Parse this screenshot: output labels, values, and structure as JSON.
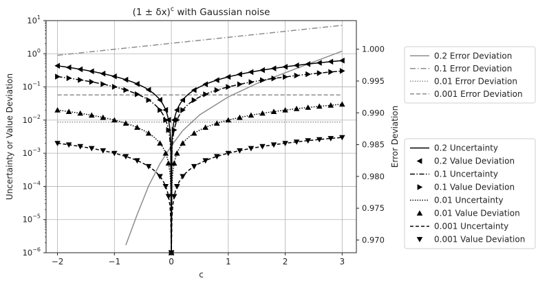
{
  "chart_data": {
    "type": "line",
    "title_base": "(1 ± δx)",
    "title_sup": "c",
    "title_rest": " with Gaussian noise",
    "xlabel": "c",
    "ylabel_left": "Uncertainty or Value Deviation",
    "ylabel_right": "Error Deviation",
    "xlim": [
      -2.2,
      3.25
    ],
    "ylim_left_log10": [
      -6,
      1
    ],
    "ylim_right": [
      0.968,
      1.0045
    ],
    "left_scale": "log",
    "grid": true,
    "x_ticks": [
      -2,
      -1,
      0,
      1,
      2,
      3
    ],
    "x_tick_labels": [
      "−2",
      "−1",
      "0",
      "1",
      "2",
      "3"
    ],
    "left_ticks_exp": [
      1,
      0,
      -1,
      -2,
      -3,
      -4,
      -5,
      -6
    ],
    "left_tick_base": "10",
    "left_tick_exps": [
      "1",
      "0",
      "−1",
      "−2",
      "−3",
      "−4",
      "−5",
      "−6"
    ],
    "right_ticks": [
      1.0,
      0.995,
      0.99,
      0.985,
      0.98,
      0.975,
      0.97
    ],
    "right_tick_labels": [
      "1.000",
      "0.995",
      "0.990",
      "0.985",
      "0.980",
      "0.975",
      "0.970"
    ],
    "uncertainty_series": [
      {
        "delta": 0.2,
        "name": "0.2 Uncertainty",
        "value_name": "0.2 Value Deviation",
        "marker": "left"
      },
      {
        "delta": 0.1,
        "name": "0.1 Uncertainty",
        "value_name": "0.1 Value Deviation",
        "marker": "right"
      },
      {
        "delta": 0.01,
        "name": "0.01 Uncertainty",
        "value_name": "0.01 Value Deviation",
        "marker": "up"
      },
      {
        "delta": 0.001,
        "name": "0.001 Uncertainty",
        "value_name": "0.001 Value Deviation",
        "marker": "down"
      }
    ],
    "value_deviation_x": [
      -2,
      -1.8,
      -1.6,
      -1.4,
      -1.2,
      -1.0,
      -0.8,
      -0.6,
      -0.4,
      -0.2,
      -0.1,
      -0.05,
      0,
      0.05,
      0.1,
      0.2,
      0.4,
      0.6,
      0.8,
      1.0,
      1.2,
      1.4,
      1.6,
      1.8,
      2.0,
      2.2,
      2.4,
      2.6,
      2.8,
      3.0
    ],
    "error_deviation_series": [
      {
        "name": "0.2 Error Deviation",
        "x": [
          -0.8,
          -0.6,
          -0.4,
          -0.2,
          0,
          0.2,
          0.5,
          1.0,
          1.5,
          2.0,
          2.5,
          3.0
        ],
        "y": [
          0.9692,
          0.974,
          0.9785,
          0.982,
          0.9848,
          0.9872,
          0.9897,
          0.9925,
          0.9946,
          0.9963,
          0.998,
          0.9997
        ]
      },
      {
        "name": "0.1 Error Deviation",
        "x": [
          -2,
          3
        ],
        "y": [
          0.99905,
          1.00375
        ]
      },
      {
        "name": "0.01 Error Deviation",
        "x": [
          -2,
          3
        ],
        "y": [
          0.98855,
          0.98855
        ]
      },
      {
        "name": "0.001 Error Deviation",
        "x": [
          -2,
          3
        ],
        "y": [
          0.9928,
          0.9928
        ]
      }
    ],
    "legend_upper_entries": [
      "0.2 Error Deviation",
      "0.1 Error Deviation",
      "0.01 Error Deviation",
      "0.001 Error Deviation"
    ],
    "legend_lower_entries": [
      "0.2 Uncertainty",
      "0.2 Value Deviation",
      "0.1 Uncertainty",
      "0.1 Value Deviation",
      "0.01 Uncertainty",
      "0.01 Value Deviation",
      "0.001 Uncertainty",
      "0.001 Value Deviation"
    ],
    "colors": {
      "uncertainty": "#000000",
      "error": "#8c8c8c",
      "grid": "#b0b0b0"
    }
  }
}
